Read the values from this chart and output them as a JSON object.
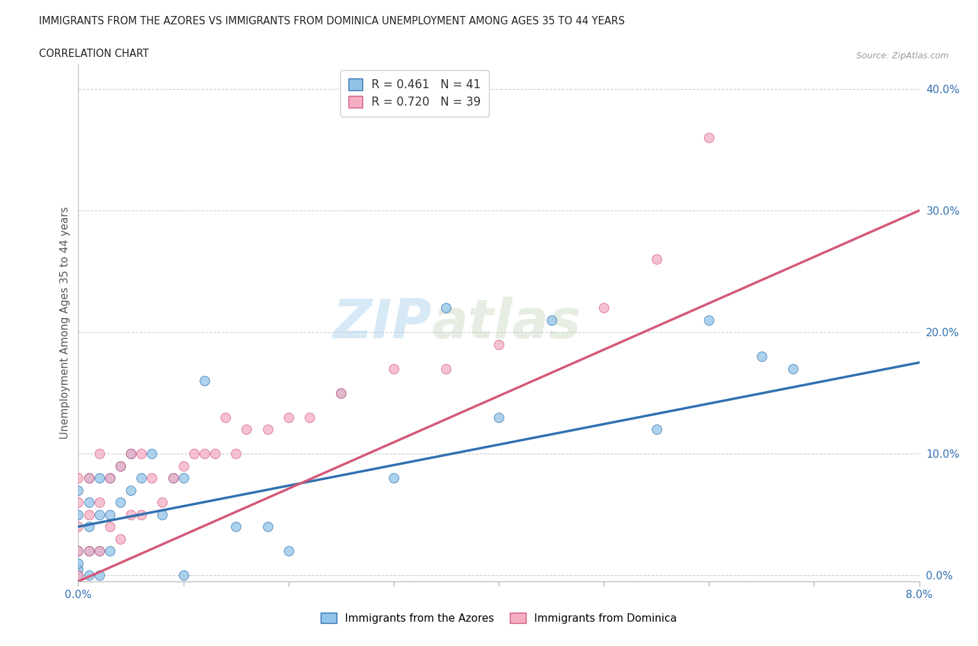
{
  "title_line1": "IMMIGRANTS FROM THE AZORES VS IMMIGRANTS FROM DOMINICA UNEMPLOYMENT AMONG AGES 35 TO 44 YEARS",
  "title_line2": "CORRELATION CHART",
  "source": "Source: ZipAtlas.com",
  "ylabel": "Unemployment Among Ages 35 to 44 years",
  "xlim": [
    0.0,
    0.08
  ],
  "ylim": [
    -0.005,
    0.42
  ],
  "ytick_vals": [
    0.0,
    0.1,
    0.2,
    0.3,
    0.4
  ],
  "ytick_labels": [
    "0.0%",
    "10.0%",
    "20.0%",
    "30.0%",
    "40.0%"
  ],
  "xtick_vals": [
    0.0,
    0.01,
    0.02,
    0.03,
    0.04,
    0.05,
    0.06,
    0.07,
    0.08
  ],
  "xtick_labels": [
    "0.0%",
    "",
    "",
    "",
    "",
    "",
    "",
    "",
    "8.0%"
  ],
  "legend_label1": "Immigrants from the Azores",
  "legend_label2": "Immigrants from Dominica",
  "R1": 0.461,
  "N1": 41,
  "R2": 0.72,
  "N2": 39,
  "color_azores": "#90c4e8",
  "color_dominica": "#f4aec4",
  "color_line_azores": "#3070b0",
  "color_line_dominica": "#d45878",
  "watermark_zip": "ZIP",
  "watermark_atlas": "atlas",
  "azores_x": [
    0.0,
    0.0,
    0.0,
    0.0,
    0.0,
    0.0,
    0.001,
    0.001,
    0.001,
    0.001,
    0.001,
    0.002,
    0.002,
    0.002,
    0.002,
    0.003,
    0.003,
    0.003,
    0.004,
    0.004,
    0.005,
    0.005,
    0.006,
    0.007,
    0.008,
    0.009,
    0.01,
    0.01,
    0.012,
    0.015,
    0.018,
    0.02,
    0.025,
    0.03,
    0.035,
    0.04,
    0.045,
    0.055,
    0.06,
    0.065,
    0.068
  ],
  "azores_y": [
    0.0,
    0.005,
    0.01,
    0.02,
    0.05,
    0.07,
    0.0,
    0.02,
    0.04,
    0.06,
    0.08,
    0.0,
    0.02,
    0.05,
    0.08,
    0.02,
    0.05,
    0.08,
    0.06,
    0.09,
    0.07,
    0.1,
    0.08,
    0.1,
    0.05,
    0.08,
    0.0,
    0.08,
    0.16,
    0.04,
    0.04,
    0.02,
    0.15,
    0.08,
    0.22,
    0.13,
    0.21,
    0.12,
    0.21,
    0.18,
    0.17
  ],
  "dominica_x": [
    0.0,
    0.0,
    0.0,
    0.0,
    0.0,
    0.001,
    0.001,
    0.001,
    0.002,
    0.002,
    0.002,
    0.003,
    0.003,
    0.004,
    0.004,
    0.005,
    0.005,
    0.006,
    0.006,
    0.007,
    0.008,
    0.009,
    0.01,
    0.011,
    0.012,
    0.013,
    0.014,
    0.015,
    0.016,
    0.018,
    0.02,
    0.022,
    0.025,
    0.03,
    0.035,
    0.04,
    0.05,
    0.055,
    0.06
  ],
  "dominica_y": [
    0.0,
    0.02,
    0.04,
    0.06,
    0.08,
    0.02,
    0.05,
    0.08,
    0.02,
    0.06,
    0.1,
    0.04,
    0.08,
    0.03,
    0.09,
    0.05,
    0.1,
    0.05,
    0.1,
    0.08,
    0.06,
    0.08,
    0.09,
    0.1,
    0.1,
    0.1,
    0.13,
    0.1,
    0.12,
    0.12,
    0.13,
    0.13,
    0.15,
    0.17,
    0.17,
    0.19,
    0.22,
    0.26,
    0.36
  ],
  "line_azores_x0": 0.0,
  "line_azores_x1": 0.08,
  "line_azores_y0": 0.04,
  "line_azores_y1": 0.175,
  "line_dominica_x0": 0.0,
  "line_dominica_x1": 0.08,
  "line_dominica_y0": -0.005,
  "line_dominica_y1": 0.3
}
